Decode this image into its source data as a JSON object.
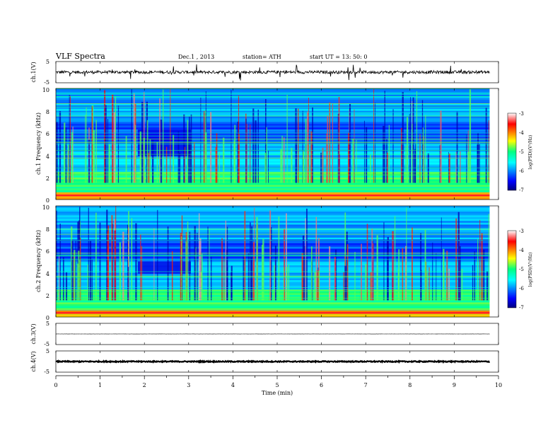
{
  "header": {
    "title": "VLF  Spectra",
    "date": "Dec.1  , 2013",
    "station": "station= ATH",
    "start": "start  UT  =    13: 50: 0"
  },
  "chart_data": [
    {
      "type": "line",
      "panel": "ch1-waveform",
      "ylabel": "ch.1(V)",
      "ylim": [
        -5,
        5
      ],
      "yticks": [
        "5",
        "-5"
      ],
      "x_range": [
        0,
        9.8
      ],
      "baseline": 0,
      "amplitude": 0.7
    },
    {
      "type": "heatmap",
      "panel": "ch1-spectrogram",
      "ylabel": "ch.1  Frequency  (kHz)",
      "ylim": [
        0,
        10
      ],
      "yticks": [
        "0",
        "2",
        "4",
        "6",
        "8",
        "10"
      ],
      "x_range": [
        0,
        9.8
      ],
      "colorbar": {
        "label": "log(PSD)(V²/Hz)",
        "range": [
          -7,
          -3
        ],
        "ticks": [
          "-3",
          "-4",
          "-5",
          "-6",
          "-7"
        ]
      },
      "dark_region": {
        "x": [
          1.85,
          3.05
        ],
        "y": [
          3.9,
          6.3
        ]
      }
    },
    {
      "type": "heatmap",
      "panel": "ch2-spectrogram",
      "ylabel": "ch.2  Frequency  (kHz)",
      "ylim": [
        0,
        10
      ],
      "yticks": [
        "0",
        "2",
        "4",
        "6",
        "8",
        "10"
      ],
      "x_range": [
        0,
        9.8
      ],
      "colorbar": {
        "label": "log(PSD)(V²/Hz)",
        "range": [
          -7,
          -3
        ],
        "ticks": [
          "-3",
          "-4",
          "-5",
          "-6",
          "-7"
        ]
      },
      "dark_region": {
        "x": [
          1.85,
          3.05
        ],
        "y": [
          3.9,
          5.0
        ]
      }
    },
    {
      "type": "line",
      "panel": "ch3-waveform",
      "ylabel": "ch.3(V)",
      "ylim": [
        -5,
        5
      ],
      "yticks": [
        "5",
        "-5"
      ],
      "x_range": [
        0,
        9.8
      ],
      "baseline": 0,
      "amplitude": 0.05
    },
    {
      "type": "line",
      "panel": "ch4-waveform",
      "ylabel": "ch.4(V)",
      "ylim": [
        -5,
        5
      ],
      "yticks": [
        "5",
        "-5"
      ],
      "x_range": [
        0,
        9.8
      ],
      "baseline": 0,
      "amplitude": 0.25
    }
  ],
  "xaxis": {
    "label": "Time  (min)",
    "ticks": [
      "0",
      "1",
      "2",
      "3",
      "4",
      "5",
      "6",
      "7",
      "8",
      "9",
      "10"
    ],
    "range": [
      0,
      10
    ]
  }
}
